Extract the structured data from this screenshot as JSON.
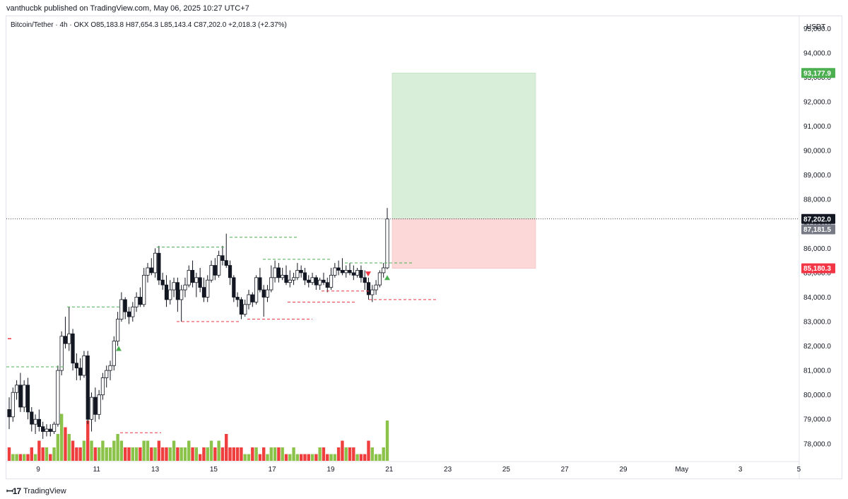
{
  "header": {
    "published_text": "vanthucbk published on TradingView.com, May 06, 2025 10:27 UTC+7"
  },
  "legend": {
    "symbol": "Bitcoin/Tether · 4h · OKX",
    "open": "O85,183.8",
    "high": "H87,654.3",
    "low": "L85,143.4",
    "close": "C87,202.0",
    "change": "+2,018.3 (+2.37%)"
  },
  "footer": {
    "brand": "TradingView"
  },
  "colors": {
    "up": "#8bc34a",
    "down": "#ef3e3e",
    "green_zone": "#d9eed9",
    "red_zone": "#fcd8d8",
    "green_label": "#4caf50",
    "red_label": "#f23645",
    "grey_label": "#787b86"
  },
  "chart_data": {
    "type": "candlestick",
    "currency": "USDT",
    "ylim": [
      77300,
      95500
    ],
    "y_ticks": [
      "78,000.0",
      "79,000.0",
      "80,000.0",
      "81,000.0",
      "82,000.0",
      "83,000.0",
      "84,000.0",
      "85,000.0",
      "86,000.0",
      "87,000.0",
      "88,000.0",
      "89,000.0",
      "90,000.0",
      "91,000.0",
      "92,000.0",
      "93,000.0",
      "94,000.0",
      "95,000.0"
    ],
    "x_ticks": [
      "9",
      "11",
      "13",
      "15",
      "17",
      "19",
      "21",
      "23",
      "25",
      "27",
      "29",
      "May",
      "3",
      "5"
    ],
    "price_labels": {
      "last": "87,202.0",
      "grey": "87,181.5",
      "target": "93,177.9",
      "stop": "85,180.3"
    },
    "position": {
      "entry": 87202,
      "target": 93177.9,
      "stop": 85180.3
    },
    "candles": [
      [
        79400,
        79900,
        78600,
        79100
      ],
      [
        79100,
        80300,
        78900,
        80100
      ],
      [
        80100,
        80600,
        79800,
        80400
      ],
      [
        80400,
        80900,
        79300,
        79500
      ],
      [
        79500,
        80600,
        79300,
        80400
      ],
      [
        80400,
        80700,
        79000,
        79300
      ],
      [
        79300,
        79500,
        78500,
        78800
      ],
      [
        78800,
        79200,
        78400,
        79000
      ],
      [
        79000,
        79400,
        78500,
        78700
      ],
      [
        78700,
        78900,
        78200,
        78500
      ],
      [
        78500,
        78800,
        78300,
        78600
      ],
      [
        78600,
        78800,
        78300,
        78500
      ],
      [
        78500,
        78900,
        78400,
        78800
      ],
      [
        78800,
        81200,
        78700,
        81000
      ],
      [
        81000,
        82600,
        80800,
        82400
      ],
      [
        82400,
        83200,
        81900,
        82100
      ],
      [
        82100,
        83600,
        81800,
        82500
      ],
      [
        82500,
        82700,
        81000,
        81300
      ],
      [
        81300,
        81700,
        80600,
        81100
      ],
      [
        81100,
        81500,
        80600,
        80800
      ],
      [
        80800,
        81800,
        80700,
        81600
      ],
      [
        81600,
        81800,
        78800,
        79000
      ],
      [
        79000,
        80100,
        78500,
        79900
      ],
      [
        79900,
        80300,
        78900,
        79200
      ],
      [
        79200,
        80200,
        79000,
        80000
      ],
      [
        80000,
        80900,
        79800,
        80700
      ],
      [
        80700,
        81200,
        80300,
        81000
      ],
      [
        81000,
        81400,
        80600,
        81200
      ],
      [
        81200,
        82400,
        81000,
        82200
      ],
      [
        82200,
        83400,
        82000,
        83100
      ],
      [
        83100,
        84200,
        83000,
        83900
      ],
      [
        83900,
        84000,
        83100,
        83400
      ],
      [
        83400,
        83600,
        82900,
        83200
      ],
      [
        83200,
        83800,
        83000,
        83600
      ],
      [
        83600,
        84200,
        83400,
        84000
      ],
      [
        84000,
        84400,
        83600,
        83700
      ],
      [
        83700,
        85200,
        83600,
        84900
      ],
      [
        84900,
        85400,
        84600,
        85200
      ],
      [
        85200,
        85600,
        84900,
        85000
      ],
      [
        85000,
        86000,
        84800,
        85800
      ],
      [
        85800,
        86100,
        84500,
        84700
      ],
      [
        84700,
        85000,
        84300,
        84500
      ],
      [
        84500,
        84900,
        83600,
        83900
      ],
      [
        83900,
        84700,
        83700,
        84300
      ],
      [
        84300,
        84800,
        84000,
        84600
      ],
      [
        84600,
        84800,
        83400,
        83900
      ],
      [
        83900,
        84500,
        83000,
        84300
      ],
      [
        84300,
        84800,
        84000,
        84500
      ],
      [
        84500,
        85300,
        84400,
        85100
      ],
      [
        85100,
        85500,
        84400,
        84600
      ],
      [
        84600,
        85000,
        84000,
        84800
      ],
      [
        84800,
        85200,
        84200,
        84400
      ],
      [
        84400,
        84800,
        83800,
        84000
      ],
      [
        84000,
        84900,
        83800,
        84700
      ],
      [
        84700,
        85500,
        84600,
        85300
      ],
      [
        85300,
        85600,
        84700,
        84900
      ],
      [
        84900,
        85900,
        84800,
        85700
      ],
      [
        85700,
        86100,
        85300,
        85500
      ],
      [
        85500,
        86600,
        85200,
        85300
      ],
      [
        85300,
        85500,
        84500,
        84800
      ],
      [
        84800,
        84900,
        83800,
        84000
      ],
      [
        84000,
        84200,
        83600,
        83900
      ],
      [
        83900,
        84000,
        83100,
        83300
      ],
      [
        83300,
        83900,
        83200,
        83700
      ],
      [
        83700,
        84300,
        83500,
        84100
      ],
      [
        84100,
        84200,
        83600,
        83800
      ],
      [
        83800,
        84900,
        83700,
        84800
      ],
      [
        84800,
        85200,
        84200,
        84300
      ],
      [
        84300,
        84500,
        83200,
        84000
      ],
      [
        84000,
        84500,
        83800,
        84300
      ],
      [
        84300,
        85300,
        84200,
        84800
      ],
      [
        84800,
        85500,
        84600,
        85200
      ],
      [
        85200,
        85400,
        84600,
        84800
      ],
      [
        84800,
        85200,
        84700,
        84900
      ],
      [
        84900,
        85300,
        84500,
        84600
      ],
      [
        84600,
        85100,
        84400,
        84700
      ],
      [
        84700,
        85000,
        84500,
        84800
      ],
      [
        84800,
        85400,
        84700,
        85100
      ],
      [
        85100,
        85300,
        84800,
        85000
      ],
      [
        85000,
        85200,
        84500,
        84700
      ],
      [
        84700,
        84900,
        84400,
        84600
      ],
      [
        84600,
        85000,
        84500,
        84800
      ],
      [
        84800,
        84900,
        84300,
        84500
      ],
      [
        84500,
        84800,
        84300,
        84700
      ],
      [
        84700,
        85000,
        84500,
        84600
      ],
      [
        84600,
        84800,
        84200,
        84400
      ],
      [
        84400,
        85200,
        84300,
        84900
      ],
      [
        84900,
        85400,
        84800,
        85200
      ],
      [
        85200,
        85500,
        84900,
        85100
      ],
      [
        85100,
        85600,
        84900,
        85000
      ],
      [
        85000,
        85300,
        84800,
        85100
      ],
      [
        85100,
        85400,
        84900,
        85000
      ],
      [
        85000,
        85300,
        84700,
        84900
      ],
      [
        84900,
        85200,
        84800,
        85100
      ],
      [
        85100,
        85300,
        84600,
        84800
      ],
      [
        84800,
        85100,
        84300,
        84600
      ],
      [
        84600,
        84800,
        83900,
        84100
      ],
      [
        84100,
        84500,
        83800,
        84300
      ],
      [
        84300,
        84700,
        84100,
        84500
      ],
      [
        84500,
        85100,
        84400,
        85000
      ],
      [
        85000,
        85400,
        84800,
        85200
      ],
      [
        85200,
        87650,
        85140,
        87202
      ]
    ],
    "volume": [
      2,
      1,
      1,
      1,
      1,
      1,
      2,
      1,
      3,
      2,
      2,
      1,
      2,
      4,
      7,
      5,
      4,
      3,
      2,
      2,
      3,
      6,
      3,
      2,
      2,
      3,
      2,
      2,
      3,
      4,
      3,
      2,
      2,
      2,
      2,
      2,
      3,
      3,
      2,
      2,
      3,
      2,
      2,
      2,
      3,
      2,
      2,
      2,
      3,
      2,
      2,
      1,
      2,
      2,
      3,
      2,
      3,
      2,
      4,
      2,
      2,
      2,
      2,
      1,
      1,
      2,
      2,
      1,
      2,
      1,
      2,
      2,
      2,
      2,
      1,
      1,
      2,
      1,
      1,
      1,
      1,
      1,
      1,
      2,
      2,
      1,
      1,
      1,
      2,
      3,
      2,
      2,
      2,
      1,
      1,
      1,
      3,
      2,
      1,
      1,
      2,
      6
    ]
  }
}
